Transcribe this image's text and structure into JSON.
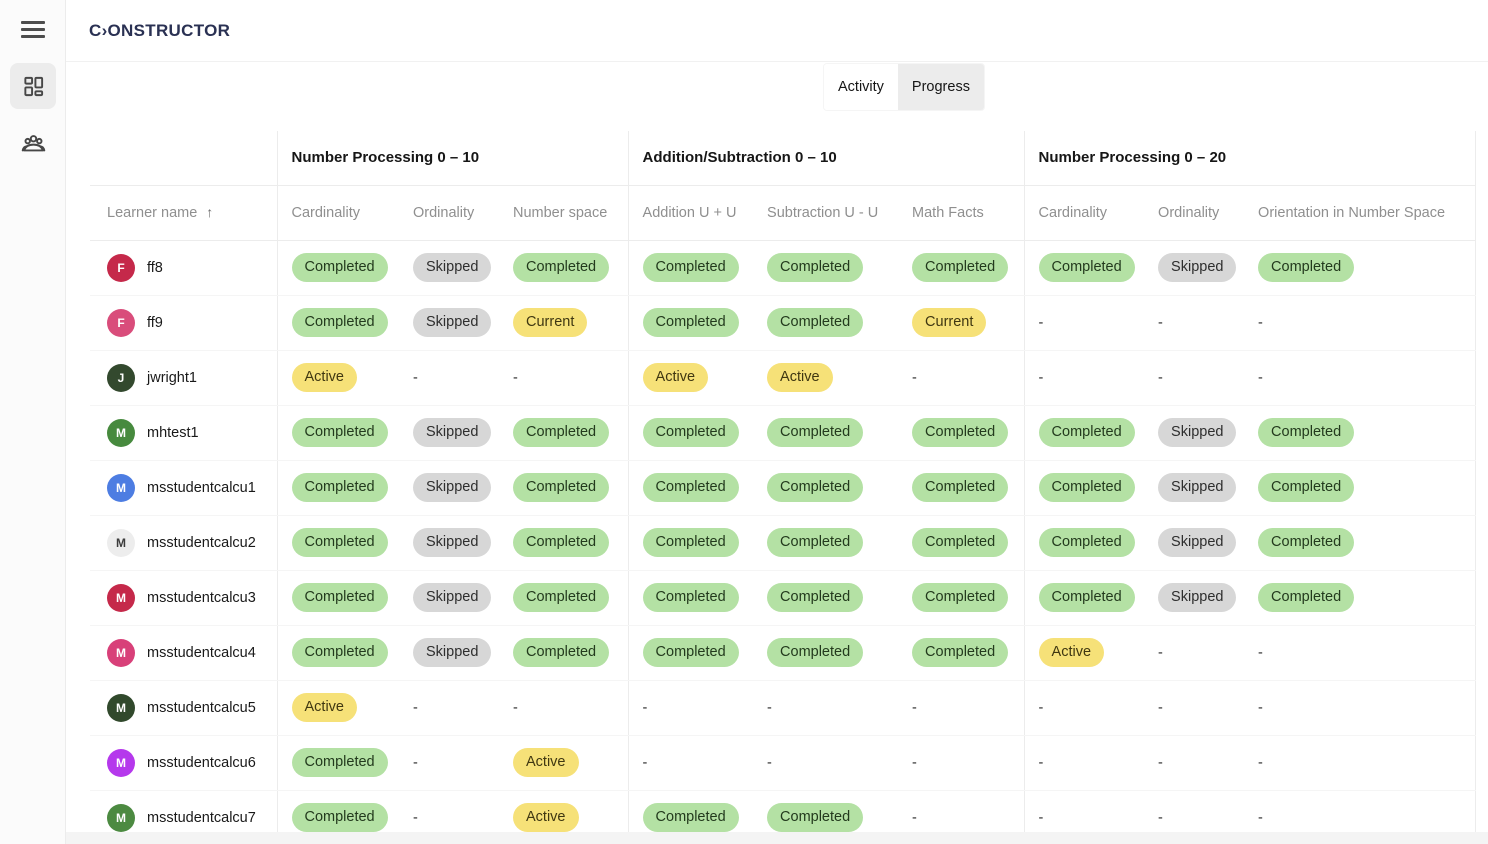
{
  "brand": {
    "logo_text": "C›ONSTRUCTOR"
  },
  "sidebar": {
    "menu_icon": "hamburger-menu",
    "items": [
      {
        "id": "dashboard",
        "icon": "dashboard-grid-icon",
        "active": true
      },
      {
        "id": "learners",
        "icon": "people-group-icon",
        "active": false
      }
    ]
  },
  "tabs": [
    {
      "label": "Activity",
      "active": false
    },
    {
      "label": "Progress",
      "active": true
    }
  ],
  "table": {
    "learner_header": {
      "label": "Learner name",
      "sort_icon": "↑"
    },
    "groups": [
      {
        "label": "Number Processing 0 – 10",
        "columns": [
          "Cardinality",
          "Ordinality",
          "Number space"
        ]
      },
      {
        "label": "Addition/Subtraction 0 – 10",
        "columns": [
          "Addition U + U",
          "Subtraction U - U",
          "Math Facts"
        ]
      },
      {
        "label": "Number Processing 0 – 20",
        "columns": [
          "Cardinality",
          "Ordinality",
          "Orientation in Number Space"
        ]
      }
    ],
    "rows": [
      {
        "name": "ff8",
        "avatar": {
          "letter": "F",
          "bg": "#c5294a",
          "fg": "#ffffff"
        },
        "cells": [
          "Completed",
          "Skipped",
          "Completed",
          "Completed",
          "Completed",
          "Completed",
          "Completed",
          "Skipped",
          "Completed"
        ]
      },
      {
        "name": "ff9",
        "avatar": {
          "letter": "F",
          "bg": "#d94d7b",
          "fg": "#ffffff"
        },
        "cells": [
          "Completed",
          "Skipped",
          "Current",
          "Completed",
          "Completed",
          "Current",
          "-",
          "-",
          "-"
        ]
      },
      {
        "name": "jwright1",
        "avatar": {
          "letter": "J",
          "bg": "#33492e",
          "fg": "#ffffff"
        },
        "cells": [
          "Active",
          "-",
          "-",
          "Active",
          "Active",
          "-",
          "-",
          "-",
          "-"
        ]
      },
      {
        "name": "mhtest1",
        "avatar": {
          "letter": "M",
          "bg": "#478a3e",
          "fg": "#ffffff"
        },
        "cells": [
          "Completed",
          "Skipped",
          "Completed",
          "Completed",
          "Completed",
          "Completed",
          "Completed",
          "Skipped",
          "Completed"
        ]
      },
      {
        "name": "msstudentcalcu1",
        "avatar": {
          "letter": "M",
          "bg": "#4d7de2",
          "fg": "#ffffff"
        },
        "cells": [
          "Completed",
          "Skipped",
          "Completed",
          "Completed",
          "Completed",
          "Completed",
          "Completed",
          "Skipped",
          "Completed"
        ]
      },
      {
        "name": "msstudentcalcu2",
        "avatar": {
          "letter": "M",
          "bg": "#ededed",
          "fg": "#3c3c3c"
        },
        "cells": [
          "Completed",
          "Skipped",
          "Completed",
          "Completed",
          "Completed",
          "Completed",
          "Completed",
          "Skipped",
          "Completed"
        ]
      },
      {
        "name": "msstudentcalcu3",
        "avatar": {
          "letter": "M",
          "bg": "#c5294a",
          "fg": "#ffffff"
        },
        "cells": [
          "Completed",
          "Skipped",
          "Completed",
          "Completed",
          "Completed",
          "Completed",
          "Completed",
          "Skipped",
          "Completed"
        ]
      },
      {
        "name": "msstudentcalcu4",
        "avatar": {
          "letter": "M",
          "bg": "#d84079",
          "fg": "#ffffff"
        },
        "cells": [
          "Completed",
          "Skipped",
          "Completed",
          "Completed",
          "Completed",
          "Completed",
          "Active",
          "-",
          "-"
        ]
      },
      {
        "name": "msstudentcalcu5",
        "avatar": {
          "letter": "M",
          "bg": "#31492c",
          "fg": "#ffffff"
        },
        "cells": [
          "Active",
          "-",
          "-",
          "-",
          "-",
          "-",
          "-",
          "-",
          "-"
        ]
      },
      {
        "name": "msstudentcalcu6",
        "avatar": {
          "letter": "M",
          "bg": "#b538ec",
          "fg": "#ffffff"
        },
        "cells": [
          "Completed",
          "-",
          "Active",
          "-",
          "-",
          "-",
          "-",
          "-",
          "-"
        ]
      },
      {
        "name": "msstudentcalcu7",
        "avatar": {
          "letter": "M",
          "bg": "#4c8a41",
          "fg": "#ffffff"
        },
        "cells": [
          "Completed",
          "-",
          "Active",
          "Completed",
          "Completed",
          "-",
          "-",
          "-",
          "-"
        ]
      }
    ]
  },
  "statuses": {
    "Completed": {
      "bg": "#b4e1a4",
      "text": "#233a1d"
    },
    "Skipped": {
      "bg": "#d7d7d7",
      "text": "#2e2e2e"
    },
    "Current": {
      "bg": "#f6e178",
      "text": "#3f3711"
    },
    "Active": {
      "bg": "#f6e178",
      "text": "#3f3711"
    },
    "empty": "-"
  }
}
